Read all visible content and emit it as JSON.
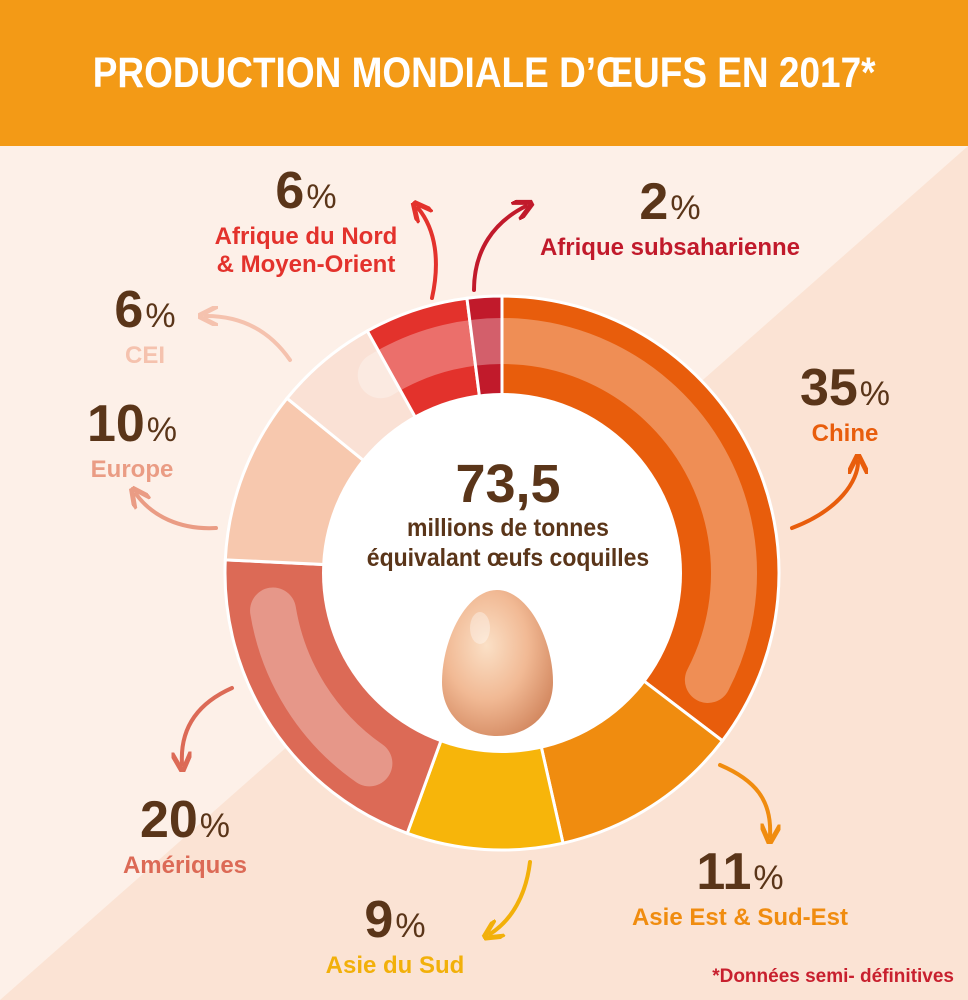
{
  "title": "PRODUCTION MONDIALE D’ŒUFS EN 2017*",
  "center": {
    "value": "73,5",
    "unit_line1": "millions de tonnes",
    "unit_line2": "équivalant œufs coquilles"
  },
  "footnote": "*Données semi- définitives",
  "colors": {
    "header": "#f39a16",
    "background_light": "#fdf0e8",
    "background_dark": "#fbe3d4",
    "text_dark": "#5a3519"
  },
  "chart_data": {
    "type": "pie",
    "variant": "donut",
    "unit": "%",
    "total_label": "73,5 millions de tonnes équivalant œufs coquilles",
    "slices": [
      {
        "label": "Chine",
        "value": 35,
        "color": "#e85d0c"
      },
      {
        "label": "Asie Est & Sud-Est",
        "value": 11,
        "color": "#f08c0f"
      },
      {
        "label": "Asie du Sud",
        "value": 9,
        "color": "#f7b50a"
      },
      {
        "label": "Amériques",
        "value": 20,
        "color": "#dc6a56"
      },
      {
        "label": "Europe",
        "value": 10,
        "color": "#f7c8ae"
      },
      {
        "label": "CEI",
        "value": 6,
        "color": "#fae1d5"
      },
      {
        "label": "Afrique du Nord & Moyen-Orient",
        "value": 6,
        "color": "#e3322c"
      },
      {
        "label": "Afrique subsaharienne",
        "value": 2,
        "color": "#c11a2b"
      }
    ]
  },
  "labels": [
    {
      "key": "chine",
      "pct": "35",
      "sign": "%",
      "name": "Chine",
      "color": "#e85d0c"
    },
    {
      "key": "asie-est",
      "pct": "11",
      "sign": "%",
      "name": "Asie Est & Sud-Est",
      "color": "#f08c0f"
    },
    {
      "key": "asie-sud",
      "pct": "9",
      "sign": "%",
      "name": "Asie du Sud",
      "color": "#f2b00a"
    },
    {
      "key": "ameriques",
      "pct": "20",
      "sign": "%",
      "name": "Amériques",
      "color": "#dc6a56"
    },
    {
      "key": "europe",
      "pct": "10",
      "sign": "%",
      "name": "Europe",
      "color": "#ea9c84"
    },
    {
      "key": "cei",
      "pct": "6",
      "sign": "%",
      "name": "CEI",
      "color": "#f5c2ae"
    },
    {
      "key": "afrique-nord",
      "pct": "6",
      "sign": "%",
      "name_line1": "Afrique du Nord",
      "name_line2": "& Moyen-Orient",
      "color": "#e3322c"
    },
    {
      "key": "afrique-sub",
      "pct": "2",
      "sign": "%",
      "name": "Afrique subsaharienne",
      "color": "#c11a2b"
    }
  ]
}
